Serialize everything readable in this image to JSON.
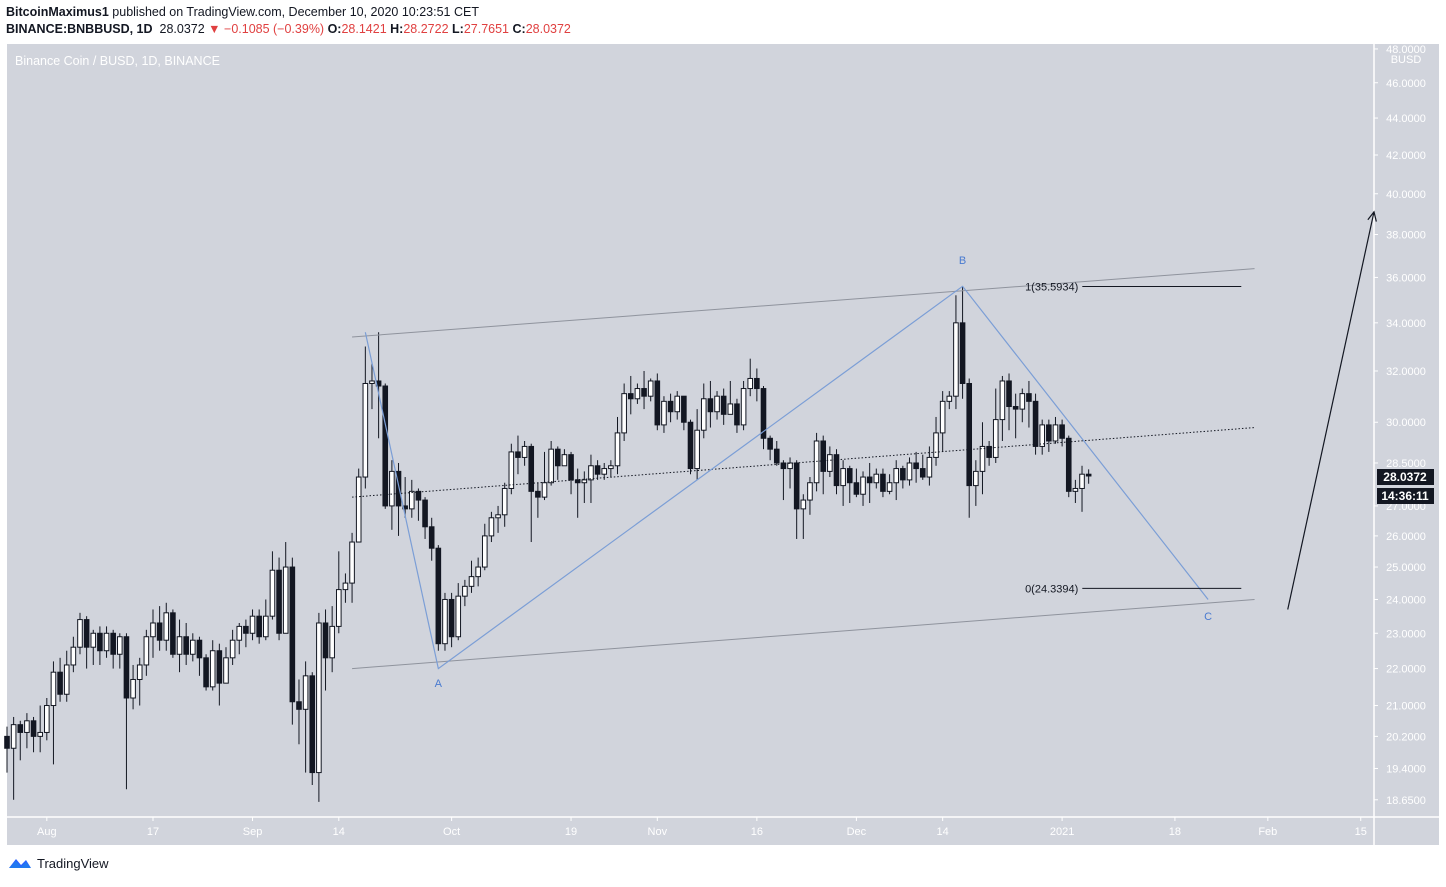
{
  "header": {
    "author": "BitcoinMaximus1",
    "published": " published on TradingView.com, December 10, 2020 10:23:51 CET",
    "symbol": "BINANCE:BNBBUSD, 1D",
    "last": "28.0372",
    "change": "▼ −0.1085 (−0.39%)",
    "o_label": "O:",
    "o": "28.1421",
    "h_label": "H:",
    "h": "28.2722",
    "l_label": "L:",
    "l": "27.7651",
    "c_label": "C:",
    "c": "28.0372"
  },
  "footer": {
    "brand": "TradingView",
    "logo_icon": "tradingview-logo-icon"
  },
  "chart_data": {
    "type": "candlestick",
    "title": "Binance Coin / BUSD, 1D, BINANCE",
    "currency": "BUSD",
    "y_scale": "log",
    "y_ticks": [
      18.65,
      19.4,
      20.2,
      21.0,
      22.0,
      23.0,
      24.0,
      25.0,
      26.0,
      27.0,
      28.5,
      30.0,
      32.0,
      34.0,
      36.0,
      38.0,
      40.0,
      42.0,
      44.0,
      46.0,
      48.0
    ],
    "y_tick_labels": [
      "18.6500",
      "19.4000",
      "20.2000",
      "21.0000",
      "22.0000",
      "23.0000",
      "24.0000",
      "25.0000",
      "26.0000",
      "27.0000",
      "28.5000",
      "30.0000",
      "32.0000",
      "34.0000",
      "36.0000",
      "38.0000",
      "40.0000",
      "42.0000",
      "44.0000",
      "46.0000",
      "48.0000"
    ],
    "x_start": "2020-07-26",
    "x_end": "2021-02-17",
    "x_ticks": [
      {
        "date": "2020-08-01",
        "label": "Aug"
      },
      {
        "date": "2020-08-17",
        "label": "17"
      },
      {
        "date": "2020-09-01",
        "label": "Sep"
      },
      {
        "date": "2020-09-14",
        "label": "14"
      },
      {
        "date": "2020-10-01",
        "label": "Oct"
      },
      {
        "date": "2020-10-19",
        "label": "19"
      },
      {
        "date": "2020-11-01",
        "label": "Nov"
      },
      {
        "date": "2020-11-16",
        "label": "16"
      },
      {
        "date": "2020-12-01",
        "label": "Dec"
      },
      {
        "date": "2020-12-14",
        "label": "14"
      },
      {
        "date": "2021-01-01",
        "label": "2021"
      },
      {
        "date": "2021-01-18",
        "label": "18"
      },
      {
        "date": "2021-02-01",
        "label": "Feb"
      },
      {
        "date": "2021-02-15",
        "label": "15"
      }
    ],
    "candles": [
      [
        "2020-07-26",
        20.2,
        19.9,
        20.45,
        19.3
      ],
      [
        "2020-07-27",
        19.9,
        20.5,
        20.7,
        18.65
      ],
      [
        "2020-07-28",
        20.5,
        20.3,
        20.6,
        19.6
      ],
      [
        "2020-07-29",
        20.3,
        20.6,
        20.8,
        19.9
      ],
      [
        "2020-07-30",
        20.6,
        20.2,
        20.7,
        19.8
      ],
      [
        "2020-07-31",
        20.2,
        20.3,
        21.0,
        19.8
      ],
      [
        "2020-08-01",
        20.3,
        21.0,
        21.2,
        20.1
      ],
      [
        "2020-08-02",
        21.0,
        21.9,
        22.2,
        19.5
      ],
      [
        "2020-08-03",
        21.9,
        21.3,
        22.3,
        21.1
      ],
      [
        "2020-08-04",
        21.3,
        22.1,
        22.5,
        21.1
      ],
      [
        "2020-08-05",
        22.1,
        22.6,
        22.9,
        21.9
      ],
      [
        "2020-08-06",
        22.6,
        23.4,
        23.6,
        22.4
      ],
      [
        "2020-08-07",
        23.4,
        22.6,
        23.5,
        22.0
      ],
      [
        "2020-08-08",
        22.6,
        23.0,
        23.1,
        22.1
      ],
      [
        "2020-08-09",
        23.0,
        22.5,
        23.2,
        22.1
      ],
      [
        "2020-08-10",
        22.5,
        23.0,
        23.2,
        22.3
      ],
      [
        "2020-08-11",
        23.0,
        22.4,
        23.1,
        22.0
      ],
      [
        "2020-08-12",
        22.4,
        22.9,
        23.0,
        22.0
      ],
      [
        "2020-08-13",
        22.9,
        21.2,
        23.0,
        18.9
      ],
      [
        "2020-08-14",
        21.2,
        21.7,
        22.1,
        20.9
      ],
      [
        "2020-08-15",
        21.7,
        22.1,
        22.3,
        21.0
      ],
      [
        "2020-08-16",
        22.1,
        22.9,
        23.1,
        21.8
      ],
      [
        "2020-08-17",
        22.9,
        23.3,
        23.7,
        22.3
      ],
      [
        "2020-08-18",
        23.3,
        22.8,
        23.8,
        22.5
      ],
      [
        "2020-08-19",
        22.8,
        23.6,
        23.9,
        22.5
      ],
      [
        "2020-08-20",
        23.6,
        22.4,
        23.7,
        22.3
      ],
      [
        "2020-08-21",
        22.4,
        22.9,
        23.4,
        21.9
      ],
      [
        "2020-08-22",
        22.9,
        22.4,
        23.3,
        22.1
      ],
      [
        "2020-08-23",
        22.4,
        22.8,
        23.0,
        22.2
      ],
      [
        "2020-08-24",
        22.8,
        22.3,
        22.9,
        21.8
      ],
      [
        "2020-08-25",
        22.3,
        21.5,
        22.4,
        21.4
      ],
      [
        "2020-08-26",
        21.5,
        22.5,
        22.8,
        21.4
      ],
      [
        "2020-08-27",
        22.5,
        21.6,
        22.7,
        21.0
      ],
      [
        "2020-08-28",
        21.6,
        22.3,
        22.6,
        21.6
      ],
      [
        "2020-08-29",
        22.3,
        22.8,
        23.1,
        22.1
      ],
      [
        "2020-08-30",
        22.8,
        23.2,
        23.3,
        22.4
      ],
      [
        "2020-08-31",
        23.2,
        23.0,
        23.4,
        22.6
      ],
      [
        "2020-09-01",
        23.0,
        23.5,
        23.7,
        22.8
      ],
      [
        "2020-09-02",
        23.5,
        22.9,
        23.7,
        22.7
      ],
      [
        "2020-09-03",
        22.9,
        23.5,
        24.0,
        22.8
      ],
      [
        "2020-09-04",
        23.5,
        24.9,
        25.5,
        23.4
      ],
      [
        "2020-09-05",
        24.9,
        23.0,
        25.3,
        22.8
      ],
      [
        "2020-09-06",
        23.0,
        25.0,
        25.8,
        23.0
      ],
      [
        "2020-09-07",
        25.0,
        21.1,
        25.3,
        20.5
      ],
      [
        "2020-09-08",
        21.1,
        20.9,
        21.7,
        20.0
      ],
      [
        "2020-09-09",
        20.9,
        21.8,
        22.2,
        19.3
      ],
      [
        "2020-09-10",
        21.8,
        19.3,
        21.9,
        19.0
      ],
      [
        "2020-09-11",
        19.3,
        23.3,
        23.6,
        18.6
      ],
      [
        "2020-09-12",
        23.3,
        22.3,
        23.7,
        21.4
      ],
      [
        "2020-09-13",
        22.3,
        23.2,
        23.8,
        21.9
      ],
      [
        "2020-09-14",
        23.2,
        24.3,
        25.5,
        23.0
      ],
      [
        "2020-09-15",
        24.3,
        24.5,
        24.8,
        23.9
      ],
      [
        "2020-09-16",
        24.5,
        25.8,
        26.1,
        23.9
      ],
      [
        "2020-09-17",
        25.8,
        28.0,
        28.3,
        25.8
      ],
      [
        "2020-09-18",
        28.0,
        31.5,
        33.0,
        27.6
      ],
      [
        "2020-09-19",
        31.5,
        31.6,
        32.3,
        30.5
      ],
      [
        "2020-09-20",
        31.6,
        31.4,
        33.6,
        29.4
      ],
      [
        "2020-09-21",
        31.4,
        27.0,
        31.5,
        26.9
      ],
      [
        "2020-09-22",
        27.0,
        28.2,
        28.6,
        26.2
      ],
      [
        "2020-09-23",
        28.2,
        27.0,
        28.5,
        26.0
      ],
      [
        "2020-09-24",
        27.0,
        26.9,
        28.0,
        26.6
      ],
      [
        "2020-09-25",
        26.9,
        27.5,
        27.9,
        26.6
      ],
      [
        "2020-09-26",
        27.5,
        27.2,
        27.6,
        26.5
      ],
      [
        "2020-09-27",
        27.2,
        26.3,
        27.3,
        25.9
      ],
      [
        "2020-09-28",
        26.3,
        25.6,
        26.6,
        25.2
      ],
      [
        "2020-09-29",
        25.6,
        22.7,
        25.7,
        22.5
      ],
      [
        "2020-09-30",
        22.7,
        24.0,
        24.2,
        22.5
      ],
      [
        "2020-10-01",
        24.0,
        22.9,
        24.2,
        22.6
      ],
      [
        "2020-10-02",
        22.9,
        24.1,
        24.5,
        22.8
      ],
      [
        "2020-10-03",
        24.1,
        24.4,
        24.6,
        23.8
      ],
      [
        "2020-10-04",
        24.4,
        24.7,
        25.2,
        24.2
      ],
      [
        "2020-10-05",
        24.7,
        25.0,
        25.3,
        24.4
      ],
      [
        "2020-10-06",
        25.0,
        26.0,
        26.4,
        24.9
      ],
      [
        "2020-10-07",
        26.0,
        26.6,
        26.8,
        25.8
      ],
      [
        "2020-10-08",
        26.6,
        26.7,
        27.0,
        26.1
      ],
      [
        "2020-10-09",
        26.7,
        27.6,
        27.8,
        26.3
      ],
      [
        "2020-10-10",
        27.6,
        28.9,
        29.2,
        27.4
      ],
      [
        "2020-10-11",
        28.9,
        28.7,
        29.5,
        28.1
      ],
      [
        "2020-10-12",
        28.7,
        29.1,
        29.3,
        28.4
      ],
      [
        "2020-10-13",
        29.1,
        27.5,
        29.2,
        25.8
      ],
      [
        "2020-10-14",
        27.5,
        27.3,
        27.8,
        26.6
      ],
      [
        "2020-10-15",
        27.3,
        27.8,
        28.9,
        27.2
      ],
      [
        "2020-10-16",
        27.8,
        29.0,
        29.3,
        27.7
      ],
      [
        "2020-10-17",
        29.0,
        28.4,
        29.1,
        27.9
      ],
      [
        "2020-10-18",
        28.4,
        28.8,
        29.0,
        28.4
      ],
      [
        "2020-10-19",
        28.8,
        27.9,
        28.9,
        27.4
      ],
      [
        "2020-10-20",
        27.9,
        27.8,
        28.3,
        26.6
      ],
      [
        "2020-10-21",
        27.8,
        27.9,
        28.2,
        27.1
      ],
      [
        "2020-10-22",
        27.9,
        28.4,
        28.8,
        27.1
      ],
      [
        "2020-10-23",
        28.4,
        28.1,
        28.6,
        27.9
      ],
      [
        "2020-10-24",
        28.1,
        28.3,
        28.5,
        27.9
      ],
      [
        "2020-10-25",
        28.3,
        28.4,
        28.6,
        28.0
      ],
      [
        "2020-10-26",
        28.4,
        29.6,
        30.2,
        28.1
      ],
      [
        "2020-10-27",
        29.6,
        31.1,
        31.5,
        29.3
      ],
      [
        "2020-10-28",
        31.1,
        30.9,
        31.8,
        30.3
      ],
      [
        "2020-10-29",
        30.9,
        31.3,
        31.5,
        30.7
      ],
      [
        "2020-10-30",
        31.3,
        31.0,
        32.0,
        30.5
      ],
      [
        "2020-10-31",
        31.0,
        31.6,
        31.7,
        30.8
      ],
      [
        "2020-11-01",
        31.6,
        29.9,
        31.9,
        29.7
      ],
      [
        "2020-11-02",
        29.9,
        30.8,
        31.0,
        29.6
      ],
      [
        "2020-11-03",
        30.8,
        30.4,
        31.1,
        30.0
      ],
      [
        "2020-11-04",
        30.4,
        31.0,
        31.2,
        30.1
      ],
      [
        "2020-11-05",
        31.0,
        30.0,
        31.0,
        29.7
      ],
      [
        "2020-11-06",
        30.0,
        28.3,
        30.1,
        28.1
      ],
      [
        "2020-11-07",
        28.3,
        29.7,
        30.5,
        27.9
      ],
      [
        "2020-11-08",
        29.7,
        30.9,
        31.5,
        29.4
      ],
      [
        "2020-11-09",
        30.9,
        30.4,
        31.6,
        29.8
      ],
      [
        "2020-11-10",
        30.4,
        31.0,
        31.2,
        30.1
      ],
      [
        "2020-11-11",
        31.0,
        30.3,
        31.3,
        29.9
      ],
      [
        "2020-11-12",
        30.3,
        30.7,
        31.6,
        30.4
      ],
      [
        "2020-11-13",
        30.7,
        29.9,
        30.9,
        29.6
      ],
      [
        "2020-11-14",
        29.9,
        31.3,
        31.6,
        29.7
      ],
      [
        "2020-11-15",
        31.3,
        31.7,
        32.5,
        31.0
      ],
      [
        "2020-11-16",
        31.7,
        31.3,
        32.1,
        30.8
      ],
      [
        "2020-11-17",
        31.3,
        29.4,
        31.4,
        29.0
      ],
      [
        "2020-11-18",
        29.4,
        29.0,
        29.5,
        28.6
      ],
      [
        "2020-11-19",
        29.0,
        28.5,
        29.3,
        28.4
      ],
      [
        "2020-11-20",
        28.5,
        28.3,
        28.6,
        27.2
      ],
      [
        "2020-11-21",
        28.3,
        28.5,
        28.7,
        27.6
      ],
      [
        "2020-11-22",
        28.5,
        26.9,
        28.6,
        25.9
      ],
      [
        "2020-11-23",
        26.9,
        27.2,
        27.4,
        25.9
      ],
      [
        "2020-11-24",
        27.2,
        27.8,
        28.0,
        26.7
      ],
      [
        "2020-11-25",
        27.8,
        29.3,
        29.6,
        27.5
      ],
      [
        "2020-11-26",
        29.3,
        28.2,
        29.5,
        27.4
      ],
      [
        "2020-11-27",
        28.2,
        28.8,
        29.1,
        28.0
      ],
      [
        "2020-11-28",
        28.8,
        27.7,
        29.0,
        27.4
      ],
      [
        "2020-11-29",
        27.7,
        28.3,
        28.6,
        27.0
      ],
      [
        "2020-11-30",
        28.3,
        27.8,
        28.4,
        27.1
      ],
      [
        "2020-12-01",
        27.8,
        27.4,
        28.3,
        27.3
      ],
      [
        "2020-12-02",
        27.4,
        28.0,
        28.2,
        27.0
      ],
      [
        "2020-12-03",
        28.0,
        27.8,
        28.5,
        27.1
      ],
      [
        "2020-12-04",
        27.8,
        28.1,
        28.3,
        27.6
      ],
      [
        "2020-12-05",
        28.1,
        27.5,
        28.3,
        27.3
      ],
      [
        "2020-12-06",
        27.5,
        27.8,
        28.1,
        27.4
      ],
      [
        "2020-12-07",
        27.8,
        28.3,
        28.6,
        27.2
      ],
      [
        "2020-12-08",
        28.3,
        27.9,
        28.4,
        27.6
      ],
      [
        "2020-12-09",
        27.9,
        28.5,
        28.7,
        27.7
      ],
      [
        "2020-12-10",
        28.5,
        28.3,
        28.9,
        27.8
      ],
      [
        "2020-12-11",
        28.3,
        28.0,
        28.8,
        27.9
      ],
      [
        "2020-12-12",
        28.0,
        28.7,
        29.1,
        27.7
      ],
      [
        "2020-12-13",
        28.7,
        29.6,
        30.2,
        28.4
      ],
      [
        "2020-12-14",
        29.6,
        30.8,
        31.2,
        28.9
      ],
      [
        "2020-12-15",
        30.8,
        31.0,
        31.2,
        30.5
      ],
      [
        "2020-12-16",
        31.0,
        34.0,
        35.2,
        30.5
      ],
      [
        "2020-12-17",
        34.0,
        31.5,
        35.6,
        30.9
      ],
      [
        "2020-12-18",
        31.5,
        27.7,
        31.7,
        26.6
      ],
      [
        "2020-12-19",
        27.7,
        28.2,
        28.6,
        27.0
      ],
      [
        "2020-12-20",
        28.2,
        29.1,
        30.0,
        27.4
      ],
      [
        "2020-12-21",
        29.1,
        28.7,
        29.3,
        28.4
      ],
      [
        "2020-12-22",
        28.7,
        30.1,
        31.3,
        28.5
      ],
      [
        "2020-12-23",
        30.1,
        31.6,
        31.8,
        29.3
      ],
      [
        "2020-12-24",
        31.6,
        30.6,
        31.9,
        29.7
      ],
      [
        "2020-12-25",
        30.6,
        30.5,
        31.1,
        29.4
      ],
      [
        "2020-12-26",
        30.5,
        31.1,
        31.3,
        30.0
      ],
      [
        "2020-12-27",
        31.1,
        30.8,
        31.6,
        29.8
      ],
      [
        "2020-12-28",
        30.8,
        29.1,
        31.1,
        28.8
      ],
      [
        "2020-12-29",
        29.1,
        29.9,
        30.1,
        28.8
      ],
      [
        "2020-12-30",
        29.9,
        29.3,
        30.1,
        28.9
      ],
      [
        "2020-12-31",
        29.3,
        29.9,
        30.2,
        29.2
      ],
      [
        "2021-01-01",
        29.9,
        29.4,
        30.1,
        29.1
      ],
      [
        "2021-01-02",
        29.4,
        27.5,
        29.5,
        27.3
      ],
      [
        "2021-01-03",
        27.5,
        27.6,
        27.9,
        27.1
      ],
      [
        "2021-01-04",
        27.6,
        28.1,
        28.4,
        26.8
      ],
      [
        "2021-01-05",
        28.1,
        28.0372,
        28.2722,
        27.7651
      ]
    ],
    "last_price_label": "28.0372",
    "countdown_label": "14:36:11",
    "channel": {
      "upper": [
        [
          "2020-09-16",
          33.4
        ],
        [
          "2021-01-30",
          36.4
        ]
      ],
      "middle": [
        [
          "2020-09-16",
          27.3
        ],
        [
          "2021-01-30",
          29.8
        ]
      ],
      "lower": [
        [
          "2020-09-16",
          22.0
        ],
        [
          "2021-01-30",
          24.0
        ]
      ]
    },
    "wave": {
      "points": [
        [
          "2020-09-18",
          33.6
        ],
        [
          "2020-09-29",
          22.0
        ],
        [
          "2020-12-17",
          35.6
        ],
        [
          "2021-01-23",
          24.0
        ]
      ],
      "labels": [
        {
          "text": "A",
          "date": "2020-09-29",
          "price": 21.6
        },
        {
          "text": "B",
          "date": "2020-12-17",
          "price": 36.8
        },
        {
          "text": "C",
          "date": "2021-01-23",
          "price": 23.5
        }
      ]
    },
    "fib_levels": [
      {
        "label": "1(35.5934)",
        "price": 35.5934,
        "from": "2020-12-26",
        "to": "2021-01-28"
      },
      {
        "label": "0(24.3394)",
        "price": 24.3394,
        "from": "2020-12-26",
        "to": "2021-01-28"
      }
    ],
    "arrow": {
      "from": [
        "2021-02-04",
        23.7
      ],
      "to": [
        "2021-02-17",
        39.1
      ]
    }
  }
}
